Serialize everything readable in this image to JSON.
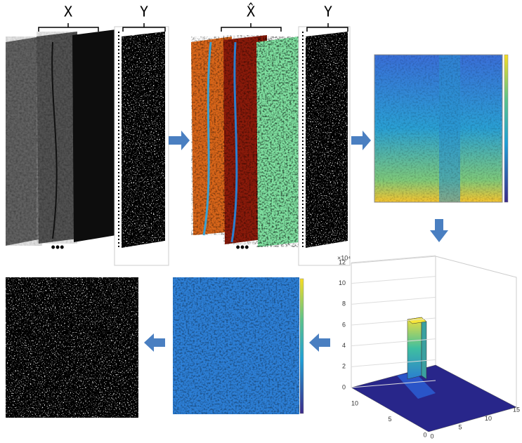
{
  "stage1": {
    "x_label": "X",
    "y_label": "Y",
    "ellipsis": "•••"
  },
  "stage2": {
    "x_label": "X̂",
    "y_label": "Y",
    "ellipsis": "•••"
  },
  "histogram": {
    "scale": "×10⁴",
    "z_ticks": [
      0,
      2,
      4,
      6,
      8,
      10,
      12
    ],
    "x_ticks": [
      0,
      5,
      10,
      15
    ],
    "y_ticks": [
      0,
      5,
      10
    ]
  }
}
